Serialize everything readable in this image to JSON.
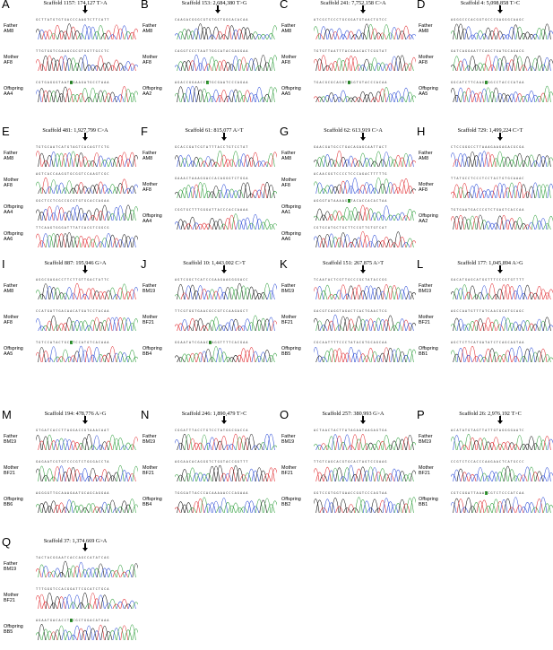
{
  "panels": [
    {
      "letter": "A",
      "title": "Scaffold 1157: 174,127 T>A",
      "arrow": 0.48,
      "tracks": [
        {
          "role": "Father",
          "id": "AM8"
        },
        {
          "role": "Mother",
          "id": "AF8"
        },
        {
          "role": "Offspring",
          "id": "AA4"
        }
      ],
      "highlight": {
        "track": 2,
        "pos": 0.48
      }
    },
    {
      "letter": "B",
      "title": "Scaffold 153: 2,684,380 T>G",
      "arrow": 0.42,
      "tracks": [
        {
          "role": "Father",
          "id": "AM8"
        },
        {
          "role": "Mother",
          "id": "AF8"
        },
        {
          "role": "Offspring",
          "id": "AA2"
        }
      ],
      "highlight": {
        "track": 2,
        "pos": 0.42
      }
    },
    {
      "letter": "C",
      "title": "Scaffold 241: 7,752,158 C>A",
      "arrow": 0.48,
      "tracks": [
        {
          "role": "Father",
          "id": "AM8"
        },
        {
          "role": "Mother",
          "id": "AF8"
        },
        {
          "role": "Offspring",
          "id": "AA5"
        }
      ],
      "highlight": {
        "track": 2,
        "pos": 0.48
      }
    },
    {
      "letter": "D",
      "title": "Scaffold 4: 5,098,858 T>C",
      "arrow": 0.48,
      "tracks": [
        {
          "role": "Father",
          "id": "AM8"
        },
        {
          "role": "Mother",
          "id": "AF8"
        },
        {
          "role": "Offspring",
          "id": "AA5"
        }
      ],
      "highlight": {
        "track": 2,
        "pos": 0.48
      }
    },
    {
      "letter": "E",
      "title": "Scaffold 481: 1,927,799 C>A",
      "arrow": 0.48,
      "tracks": [
        {
          "role": "Father",
          "id": "AM8"
        },
        {
          "role": "Mother",
          "id": "AF8"
        },
        {
          "role": "Offspring",
          "id": "AA4"
        },
        {
          "role": "Offspring",
          "id": "AA6"
        }
      ],
      "highlight": null
    },
    {
      "letter": "F",
      "title": "Scaffold 61: 815,077 A>T",
      "arrow": 0.48,
      "tracks": [
        {
          "role": "Father",
          "id": "AM8"
        },
        {
          "role": "Mother",
          "id": "AF8"
        },
        {
          "role": "Offspring",
          "id": "AA4"
        }
      ],
      "highlight": null
    },
    {
      "letter": "G",
      "title": "Scaffold 62: 613,919 C>A",
      "arrow": 0.48,
      "tracks": [
        {
          "role": "Father",
          "id": "AM8"
        },
        {
          "role": "Mother",
          "id": "AF8"
        },
        {
          "role": "Offspring",
          "id": "AA1"
        },
        {
          "role": "Offspring",
          "id": "AA6"
        }
      ],
      "highlight": {
        "track": 2,
        "pos": 0.48
      }
    },
    {
      "letter": "H",
      "title": "Scaffold 729: 1,499,224 C>T",
      "arrow": 0.48,
      "tracks": [
        {
          "role": "Father",
          "id": "AM8"
        },
        {
          "role": "Mother",
          "id": "AF8"
        },
        {
          "role": "Offspring",
          "id": "AA2"
        }
      ],
      "highlight": null
    },
    {
      "letter": "I",
      "title": "Scaffold 887: 195,946 G>A",
      "arrow": 0.48,
      "tracks": [
        {
          "role": "Father",
          "id": "AM8"
        },
        {
          "role": "Mother",
          "id": "AF8"
        },
        {
          "role": "Offspring",
          "id": "AA5"
        }
      ],
      "highlight": {
        "track": 2,
        "pos": 0.48
      }
    },
    {
      "letter": "J",
      "title": "Scaffold 10: 1,443,002 C>T",
      "arrow": 0.48,
      "tracks": [
        {
          "role": "Father",
          "id": "BM19"
        },
        {
          "role": "Mother",
          "id": "BF21"
        },
        {
          "role": "Offspring",
          "id": "BB4"
        }
      ],
      "highlight": {
        "track": 2,
        "pos": 0.48
      }
    },
    {
      "letter": "K",
      "title": "Scaffold 151: 267,875 A>T",
      "arrow": 0.48,
      "tracks": [
        {
          "role": "Father",
          "id": "BM19"
        },
        {
          "role": "Mother",
          "id": "BF21"
        },
        {
          "role": "Offspring",
          "id": "BB5"
        }
      ],
      "highlight": null
    },
    {
      "letter": "L",
      "title": "Scaffold 177: 1,045,894 A>G",
      "arrow": 0.48,
      "tracks": [
        {
          "role": "Father",
          "id": "BM19"
        },
        {
          "role": "Mother",
          "id": "BF21"
        },
        {
          "role": "Offspring",
          "id": "BB1"
        }
      ],
      "highlight": null
    },
    {
      "letter": "M",
      "title": "Scaffold 194: 478,776 A>G",
      "arrow": 0.48,
      "tracks": [
        {
          "role": "Father",
          "id": "BM19"
        },
        {
          "role": "Mother",
          "id": "BF21"
        },
        {
          "role": "Offspring",
          "id": "BB6"
        }
      ],
      "highlight": null
    },
    {
      "letter": "N",
      "title": "Scaffold 246: 1,890,479 T>C",
      "arrow": 0.48,
      "tracks": [
        {
          "role": "Father",
          "id": "BM19"
        },
        {
          "role": "Mother",
          "id": "BF21"
        },
        {
          "role": "Offspring",
          "id": "BB4"
        }
      ],
      "highlight": null
    },
    {
      "letter": "O",
      "title": "Scaffold 257: 380,993 G>A",
      "arrow": 0.48,
      "tracks": [
        {
          "role": "Father",
          "id": "BM19"
        },
        {
          "role": "Mother",
          "id": "BF21"
        },
        {
          "role": "Offspring",
          "id": "BB2"
        }
      ],
      "highlight": null
    },
    {
      "letter": "P",
      "title": "Scaffold 26: 2,976,192 T>C",
      "arrow": 0.48,
      "tracks": [
        {
          "role": "Father",
          "id": "BM19"
        },
        {
          "role": "Mother",
          "id": "BF21"
        },
        {
          "role": "Offspring",
          "id": "BB1"
        }
      ],
      "highlight": {
        "track": 2,
        "pos": 0.48
      }
    },
    {
      "letter": "Q",
      "title": "Scaffold 37: 1,374,669 G>A",
      "arrow": 0.48,
      "tracks": [
        {
          "role": "Father",
          "id": "BM19"
        },
        {
          "role": "Mother",
          "id": "BF21"
        },
        {
          "role": "Offspring",
          "id": "BB5"
        }
      ],
      "highlight": {
        "track": 2,
        "pos": 0.48
      }
    }
  ],
  "colors": {
    "A": "#2e9e3b",
    "C": "#2b4bd6",
    "G": "#111111",
    "T": "#e0262b",
    "highlight": "#3ca63c"
  }
}
